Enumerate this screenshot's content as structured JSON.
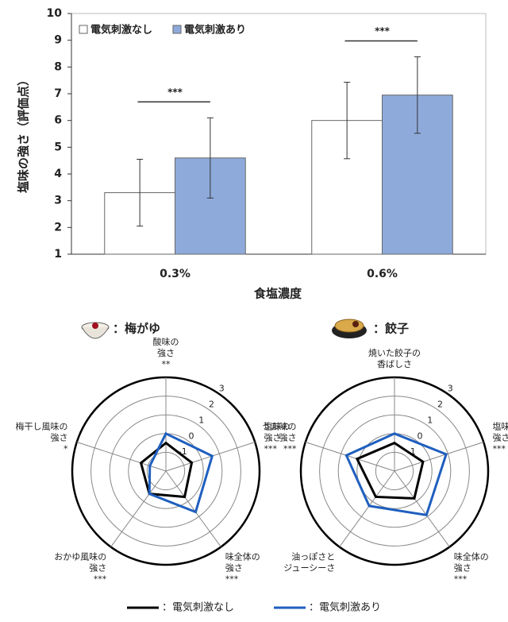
{
  "chart_data": [
    {
      "type": "bar",
      "ylabel": "塩味の強さ（評価点）",
      "xlabel": "食塩濃度",
      "categories": [
        "0.3%",
        "0.6%"
      ],
      "series": [
        {
          "name": "電気刺激なし",
          "color": "#ffffff",
          "values": [
            3.3,
            6.0
          ],
          "errors": [
            1.25,
            1.43
          ]
        },
        {
          "name": "電気刺激あり",
          "color": "#8eaadb",
          "values": [
            4.6,
            6.95
          ],
          "errors": [
            1.5,
            1.43
          ]
        }
      ],
      "significance": [
        "***",
        "***"
      ],
      "ylim": [
        1,
        10
      ],
      "yticks": [
        1,
        2,
        3,
        4,
        5,
        6,
        7,
        8,
        9,
        10
      ],
      "legend": "upper left"
    },
    {
      "type": "radar",
      "title": "：梅がゆ",
      "categories": [
        [
          "酸味の",
          "強さ"
        ],
        [
          "塩味の",
          "強さ"
        ],
        [
          "味全体の",
          "強さ"
        ],
        [
          "おかゆ風味の",
          "強さ"
        ],
        [
          "梅干し風味の",
          "強さ"
        ]
      ],
      "significance": [
        "**",
        "***",
        "***",
        "***",
        "*"
      ],
      "series": [
        {
          "color": "#000000",
          "values": [
            -0.5,
            -0.55,
            -0.3,
            -0.5,
            -0.6
          ]
        },
        {
          "color": "#1f5fbf",
          "values": [
            0.0,
            0.6,
            0.7,
            -0.5,
            -1.1
          ]
        }
      ],
      "rlim": [
        -2,
        3
      ],
      "rticks": [
        -1,
        0,
        1,
        2,
        3
      ]
    },
    {
      "type": "radar",
      "title": "：餃子",
      "categories": [
        [
          "焼いた餃子の",
          "香ばしさ"
        ],
        [
          "塩味の",
          "強さ"
        ],
        [
          "味全体の",
          "強さ"
        ],
        [
          "油っぽさと",
          "ジューシーさ"
        ],
        [
          "うま味の",
          "強さ"
        ]
      ],
      "significance": [
        null,
        "***",
        "***",
        null,
        "***"
      ],
      "series": [
        {
          "color": "#000000",
          "values": [
            -0.5,
            -0.4,
            -0.2,
            -0.3,
            0.1
          ]
        },
        {
          "color": "#1f5fbf",
          "values": [
            0.0,
            0.9,
            0.9,
            0.3,
            0.7
          ]
        }
      ],
      "rlim": [
        -2,
        3
      ],
      "rticks": [
        -1,
        0,
        1,
        2,
        3
      ]
    }
  ],
  "legend": [
    {
      "name": "：電気刺激なし",
      "color": "#000000"
    },
    {
      "name": "：電気刺激あり",
      "color": "#1f5fbf"
    }
  ]
}
